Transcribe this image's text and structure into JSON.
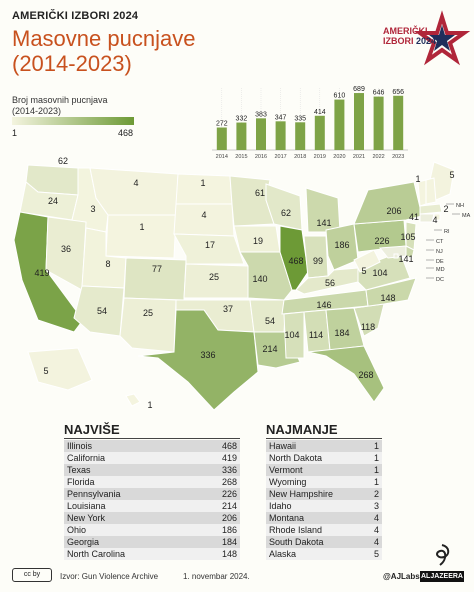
{
  "header": {
    "kicker": "AMERIČKI IZBORI 2024",
    "title_line1": "Masovne pucnjave",
    "title_line2": "(2014-2023)",
    "logo_line1": "AMERIČKI",
    "logo_line2": "IZBORI",
    "logo_year": "2024"
  },
  "legend": {
    "label_line1": "Broj masovnih pucnjava",
    "label_line2": "(2014-2023)",
    "min": "1",
    "max": "468",
    "color_low": "#f4f4df",
    "color_high": "#6d9a36"
  },
  "yearly_chart": {
    "type": "bar",
    "categories": [
      "2014",
      "2015",
      "2016",
      "2017",
      "2018",
      "2019",
      "2020",
      "2021",
      "2022",
      "2023"
    ],
    "values": [
      272,
      332,
      383,
      347,
      335,
      414,
      610,
      689,
      646,
      656
    ],
    "color": "#7ea346"
  },
  "map": {
    "states": [
      {
        "abbr": "WA",
        "value": "62"
      },
      {
        "abbr": "OR",
        "value": "24"
      },
      {
        "abbr": "CA",
        "value": "419"
      },
      {
        "abbr": "ID",
        "value": "3"
      },
      {
        "abbr": "NV",
        "value": "36"
      },
      {
        "abbr": "MT",
        "value": "4"
      },
      {
        "abbr": "WY",
        "value": "1"
      },
      {
        "abbr": "UT",
        "value": "8"
      },
      {
        "abbr": "AZ",
        "value": "54"
      },
      {
        "abbr": "CO",
        "value": "77"
      },
      {
        "abbr": "NM",
        "value": "25"
      },
      {
        "abbr": "ND",
        "value": "1"
      },
      {
        "abbr": "SD",
        "value": "4"
      },
      {
        "abbr": "NE",
        "value": "17"
      },
      {
        "abbr": "KS",
        "value": "25"
      },
      {
        "abbr": "OK",
        "value": "37"
      },
      {
        "abbr": "TX",
        "value": "336"
      },
      {
        "abbr": "MN",
        "value": "61"
      },
      {
        "abbr": "IA",
        "value": "19"
      },
      {
        "abbr": "MO",
        "value": "140"
      },
      {
        "abbr": "AR",
        "value": "54"
      },
      {
        "abbr": "LA",
        "value": "214"
      },
      {
        "abbr": "WI",
        "value": "62"
      },
      {
        "abbr": "IL",
        "value": "468"
      },
      {
        "abbr": "MI",
        "value": "141"
      },
      {
        "abbr": "IN",
        "value": "99"
      },
      {
        "abbr": "OH",
        "value": "186"
      },
      {
        "abbr": "KY",
        "value": "56"
      },
      {
        "abbr": "TN",
        "value": "146"
      },
      {
        "abbr": "MS",
        "value": "104"
      },
      {
        "abbr": "AL",
        "value": "114"
      },
      {
        "abbr": "GA",
        "value": "184"
      },
      {
        "abbr": "FL",
        "value": "268"
      },
      {
        "abbr": "SC",
        "value": "118"
      },
      {
        "abbr": "NC",
        "value": "148"
      },
      {
        "abbr": "VA",
        "value": "104"
      },
      {
        "abbr": "WV",
        "value": "5"
      },
      {
        "abbr": "PA",
        "value": "226"
      },
      {
        "abbr": "NY",
        "value": "206"
      },
      {
        "abbr": "ME",
        "value": "5"
      },
      {
        "abbr": "AK",
        "value": "5"
      },
      {
        "abbr": "HI",
        "value": "1"
      },
      {
        "abbr": "VT",
        "value": "1"
      },
      {
        "abbr": "NH",
        "value": "2"
      },
      {
        "abbr": "MA",
        "value": "41"
      },
      {
        "abbr": "RI",
        "value": "4"
      },
      {
        "abbr": "CT",
        "value": ""
      },
      {
        "abbr": "NJ",
        "value": "105"
      },
      {
        "abbr": "DE",
        "value": "141"
      },
      {
        "abbr": "MD",
        "value": ""
      },
      {
        "abbr": "DC",
        "value": ""
      }
    ],
    "callouts": [
      "NH",
      "MA",
      "RI",
      "CT",
      "NJ",
      "DE",
      "MD",
      "DC"
    ]
  },
  "most": {
    "title": "NAJVIŠE",
    "rows": [
      {
        "state": "Illinois",
        "value": "468"
      },
      {
        "state": "California",
        "value": "419"
      },
      {
        "state": "Texas",
        "value": "336"
      },
      {
        "state": "Florida",
        "value": "268"
      },
      {
        "state": "Pennsylvania",
        "value": "226"
      },
      {
        "state": "Louisiana",
        "value": "214"
      },
      {
        "state": "New York",
        "value": "206"
      },
      {
        "state": "Ohio",
        "value": "186"
      },
      {
        "state": "Georgia",
        "value": "184"
      },
      {
        "state": "North Carolina",
        "value": "148"
      }
    ]
  },
  "least": {
    "title": "NAJMANJE",
    "rows": [
      {
        "state": "Hawaii",
        "value": "1"
      },
      {
        "state": "North Dakota",
        "value": "1"
      },
      {
        "state": "Vermont",
        "value": "1"
      },
      {
        "state": "Wyoming",
        "value": "1"
      },
      {
        "state": "New Hampshire",
        "value": "2"
      },
      {
        "state": "Idaho",
        "value": "3"
      },
      {
        "state": "Montana",
        "value": "4"
      },
      {
        "state": "Rhode Island",
        "value": "4"
      },
      {
        "state": "South Dakota",
        "value": "4"
      },
      {
        "state": "Alaska",
        "value": "5"
      }
    ]
  },
  "footer": {
    "license": "cc by",
    "source": "Izvor: Gun Violence Archive",
    "date": "1. novembar 2024.",
    "handle": "@AJLabs",
    "brand": "ALJAZEERA"
  }
}
